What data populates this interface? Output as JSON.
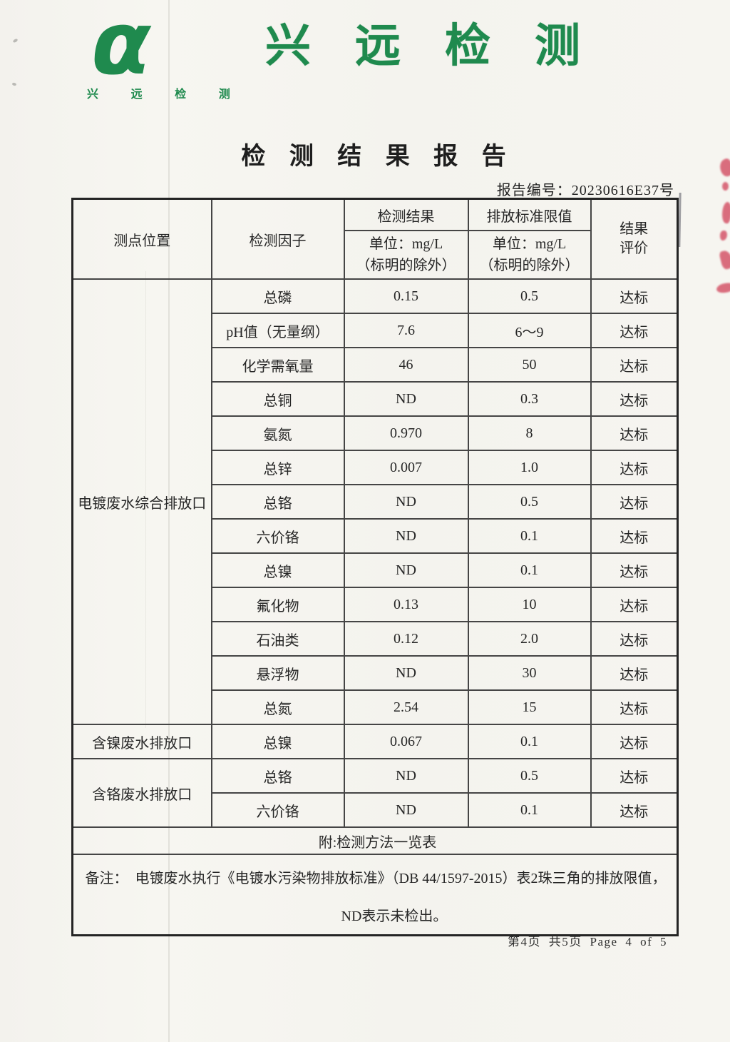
{
  "brand": {
    "alpha_symbol": "α",
    "logo_caption": "兴 远 检 测",
    "title": "兴远检测"
  },
  "document": {
    "title": "检 测 结 果 报 告",
    "report_no": "报告编号：20230616E37号",
    "page_footer": "第4页 共5页 Page 4 of 5"
  },
  "table": {
    "header": {
      "location": "测点位置",
      "factor": "检测因子",
      "result": "检测结果",
      "limit": "排放标准限值",
      "unit_line1": "单位：mg/L",
      "unit_line2": "（标明的除外）",
      "verdict_line1": "结果",
      "verdict_line2": "评价"
    },
    "groups": [
      {
        "location": "电镀废水综合排放口",
        "rows": [
          {
            "factor": "总磷",
            "result": "0.15",
            "limit": "0.5",
            "verdict": "达标"
          },
          {
            "factor": "pH值（无量纲）",
            "result": "7.6",
            "limit": "6～9",
            "verdict": "达标"
          },
          {
            "factor": "化学需氧量",
            "result": "46",
            "limit": "50",
            "verdict": "达标"
          },
          {
            "factor": "总铜",
            "result": "ND",
            "limit": "0.3",
            "verdict": "达标"
          },
          {
            "factor": "氨氮",
            "result": "0.970",
            "limit": "8",
            "verdict": "达标"
          },
          {
            "factor": "总锌",
            "result": "0.007",
            "limit": "1.0",
            "verdict": "达标"
          },
          {
            "factor": "总铬",
            "result": "ND",
            "limit": "0.5",
            "verdict": "达标"
          },
          {
            "factor": "六价铬",
            "result": "ND",
            "limit": "0.1",
            "verdict": "达标"
          },
          {
            "factor": "总镍",
            "result": "ND",
            "limit": "0.1",
            "verdict": "达标"
          },
          {
            "factor": "氟化物",
            "result": "0.13",
            "limit": "10",
            "verdict": "达标"
          },
          {
            "factor": "石油类",
            "result": "0.12",
            "limit": "2.0",
            "verdict": "达标"
          },
          {
            "factor": "悬浮物",
            "result": "ND",
            "limit": "30",
            "verdict": "达标"
          },
          {
            "factor": "总氮",
            "result": "2.54",
            "limit": "15",
            "verdict": "达标"
          }
        ]
      },
      {
        "location": "含镍废水排放口",
        "rows": [
          {
            "factor": "总镍",
            "result": "0.067",
            "limit": "0.1",
            "verdict": "达标"
          }
        ]
      },
      {
        "location": "含铬废水排放口",
        "rows": [
          {
            "factor": "总铬",
            "result": "ND",
            "limit": "0.5",
            "verdict": "达标"
          },
          {
            "factor": "六价铬",
            "result": "ND",
            "limit": "0.1",
            "verdict": "达标"
          }
        ]
      }
    ],
    "attachment_note": "附:检测方法一览表",
    "remark_label": "备注：",
    "remark_line1": "电镀废水执行《电镀水污染物排放标准》（DB 44/1597-2015）表2珠三角的排放限值，",
    "remark_line2": "ND表示未检出。"
  },
  "colors": {
    "brand_green": "#1f8a4e",
    "stamp_red": "#cf3a52",
    "paper": "#f5f4ef",
    "ink": "#2b2b2b"
  }
}
